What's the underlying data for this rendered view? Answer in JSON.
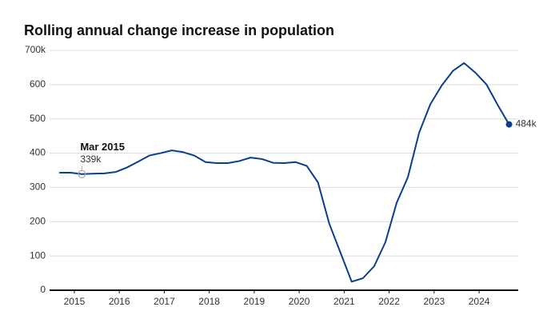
{
  "chart_data": {
    "type": "line",
    "title": "Rolling annual change increase in population",
    "x": [
      2014.667,
      2014.917,
      2015.167,
      2015.417,
      2015.667,
      2015.917,
      2016.167,
      2016.417,
      2016.667,
      2016.917,
      2017.167,
      2017.417,
      2017.667,
      2017.917,
      2018.167,
      2018.417,
      2018.667,
      2018.917,
      2019.167,
      2019.417,
      2019.667,
      2019.917,
      2020.167,
      2020.417,
      2020.667,
      2020.917,
      2021.167,
      2021.417,
      2021.667,
      2021.917,
      2022.167,
      2022.417,
      2022.667,
      2022.917,
      2023.167,
      2023.417,
      2023.667,
      2023.917,
      2024.167,
      2024.417,
      2024.667
    ],
    "series": [
      {
        "color": "#0a3d8f",
        "values": [
          343,
          343,
          339,
          340,
          341,
          345,
          358,
          375,
          393,
          400,
          408,
          403,
          393,
          374,
          371,
          371,
          377,
          387,
          383,
          372,
          371,
          374,
          363,
          315,
          195,
          110,
          25,
          35,
          70,
          140,
          255,
          330,
          460,
          543,
          597,
          640,
          663,
          635,
          600,
          540,
          484
        ]
      }
    ],
    "end_label": "484k",
    "annotation": {
      "title": "Mar 2015",
      "text": "339k",
      "x": 2015.167,
      "y": 339
    },
    "xlim": [
      2014.45,
      2024.87
    ],
    "xticks": [
      2015,
      2016,
      2017,
      2018,
      2019,
      2020,
      2021,
      2022,
      2023,
      2024
    ],
    "ylim": [
      0,
      700
    ],
    "yticks": [
      0,
      100,
      200,
      300,
      400,
      500,
      600,
      {
        "value": 700,
        "label": "700k"
      }
    ],
    "grid": true
  }
}
